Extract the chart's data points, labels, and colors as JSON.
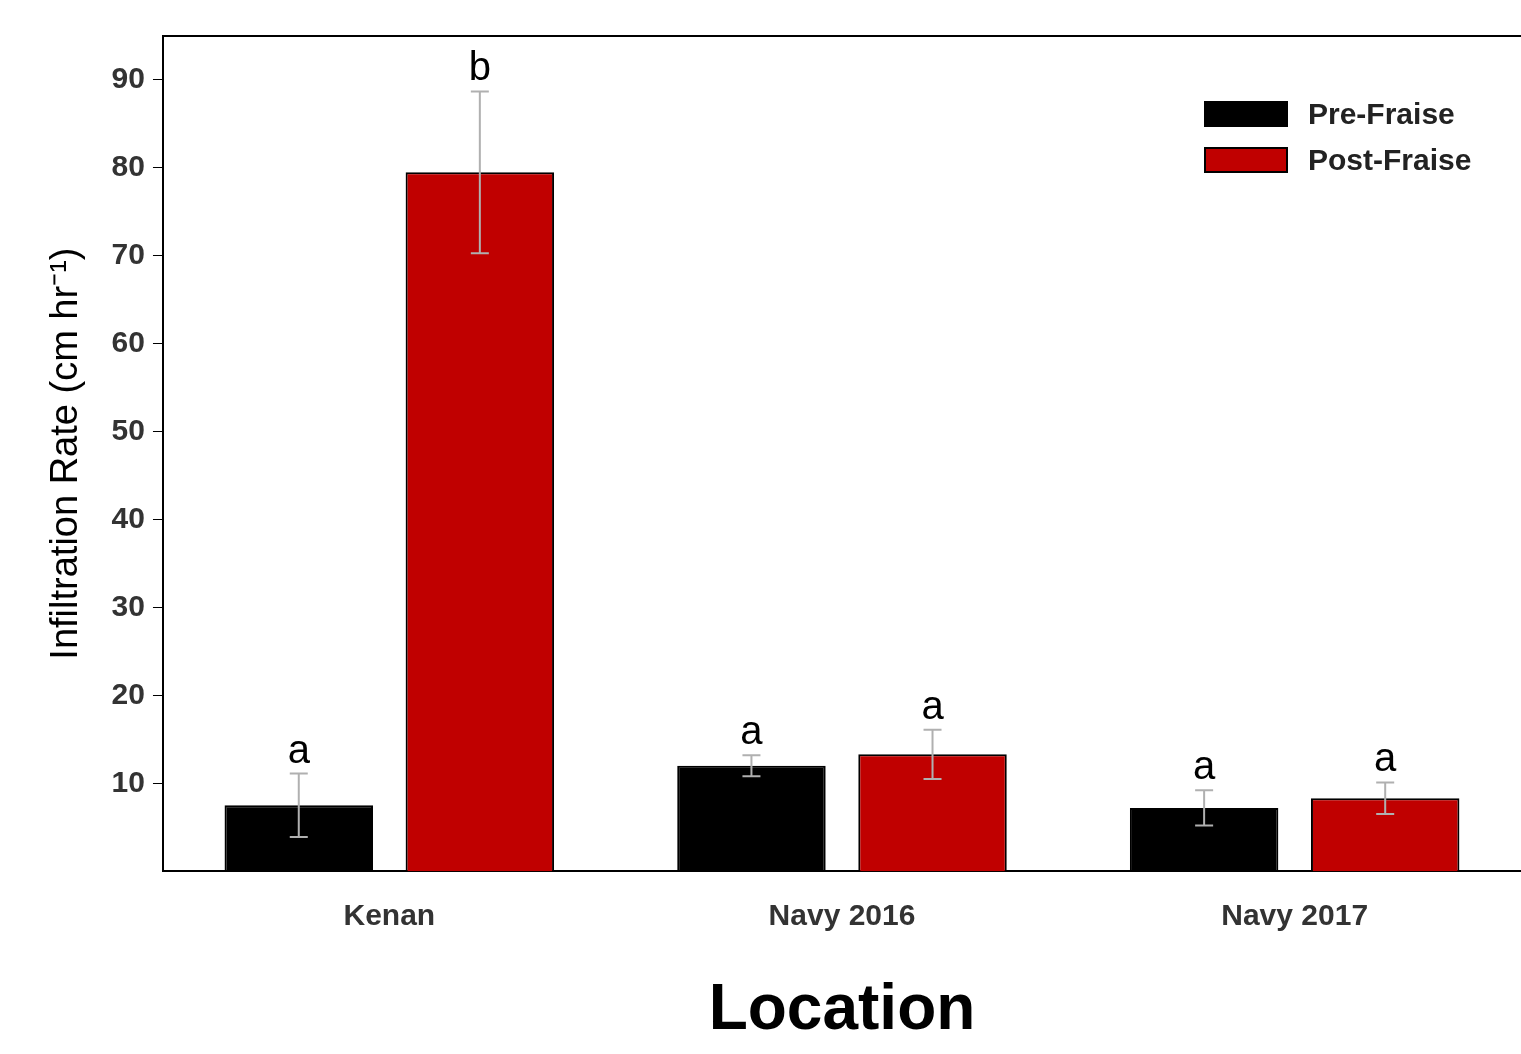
{
  "chart_data": {
    "type": "bar",
    "xlabel": "Location",
    "ylabel": "Infiltration Rate (cm hr⁻¹)",
    "categories": [
      "Kenan",
      "Navy 2016",
      "Navy 2017"
    ],
    "series": [
      {
        "name": "Pre-Fraise",
        "color": "#000000",
        "values": [
          7.5,
          12.0,
          7.2
        ],
        "errors": [
          3.6,
          1.2,
          2.0
        ],
        "value_labels": [
          "a",
          "a",
          "a"
        ]
      },
      {
        "name": "Post-Fraise",
        "color": "#c00000",
        "values": [
          79.5,
          13.3,
          8.3
        ],
        "errors": [
          9.2,
          2.8,
          1.8
        ],
        "value_labels": [
          "b",
          "a",
          "a"
        ]
      }
    ],
    "ylim": [
      0,
      95
    ],
    "yticks": [
      10,
      20,
      30,
      40,
      50,
      60,
      70,
      80,
      90
    ],
    "grid": false,
    "legend": "top right"
  }
}
